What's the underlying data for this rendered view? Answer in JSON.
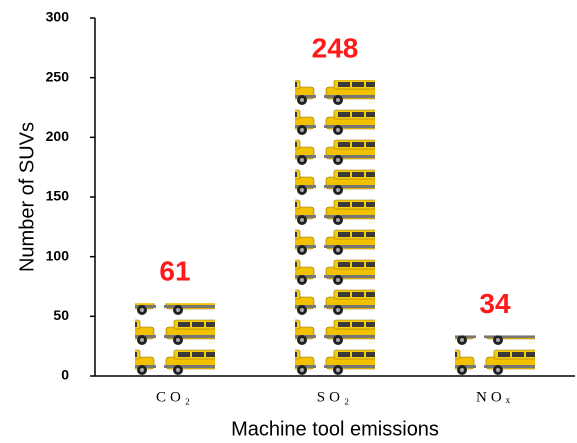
{
  "chart_data": {
    "type": "bar",
    "categories": [
      "CO₂",
      "SO₂",
      "NOₓ"
    ],
    "values": [
      61,
      248,
      34
    ],
    "label_color": "#ff1a1a",
    "xlabel": "Machine tool emissions",
    "ylabel": "Number of SUVs",
    "ylim": [
      0,
      300
    ],
    "yticks": [
      0,
      50,
      100,
      150,
      200,
      250,
      300
    ]
  }
}
